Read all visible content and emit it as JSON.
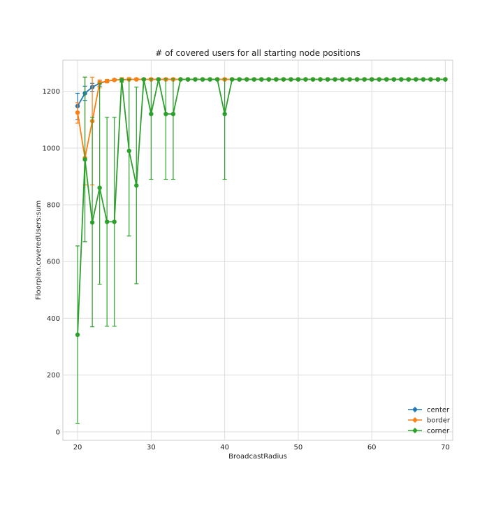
{
  "chart_data": {
    "type": "line",
    "title": "# of covered users for all starting node positions",
    "xlabel": "BroadcastRadius",
    "ylabel": "Floorplan.coveredUsers:sum",
    "xlim": [
      18,
      71
    ],
    "ylim": [
      -30,
      1310
    ],
    "xticks": [
      20,
      30,
      40,
      50,
      60,
      70
    ],
    "yticks": [
      0,
      200,
      400,
      600,
      800,
      1000,
      1200
    ],
    "grid": true,
    "legend_position": "bottom-right",
    "x": [
      20,
      21,
      22,
      23,
      24,
      25,
      26,
      27,
      28,
      29,
      30,
      31,
      32,
      33,
      34,
      35,
      36,
      37,
      38,
      39,
      40,
      41,
      42,
      43,
      44,
      45,
      46,
      47,
      48,
      49,
      50,
      51,
      52,
      53,
      54,
      55,
      56,
      57,
      58,
      59,
      60,
      61,
      62,
      63,
      64,
      65,
      66,
      67,
      68,
      69,
      70
    ],
    "series": [
      {
        "name": "center",
        "color": "#1f77b4",
        "values": [
          1148,
          1193,
          1215,
          1228,
          1236,
          1240,
          1241,
          1242,
          1242,
          1242,
          1242,
          1242,
          1242,
          1242,
          1242,
          1242,
          1242,
          1242,
          1242,
          1242,
          1242,
          1242,
          1242,
          1242,
          1242,
          1242,
          1242,
          1242,
          1242,
          1242,
          1242,
          1242,
          1242,
          1242,
          1242,
          1242,
          1242,
          1242,
          1242,
          1242,
          1242,
          1242,
          1242,
          1242,
          1242,
          1242,
          1242,
          1242,
          1242,
          1242,
          1242
        ],
        "err_low": [
          1100,
          1168,
          1200,
          1218,
          1230,
          1237,
          1239,
          1240,
          1240,
          1240,
          1240,
          1240,
          1240,
          1240,
          1240,
          1240,
          1240,
          1240,
          1240,
          1240,
          1240,
          1240,
          1240,
          1240,
          1240,
          1240,
          1240,
          1240,
          1240,
          1240,
          1240,
          1240,
          1240,
          1240,
          1240,
          1240,
          1240,
          1240,
          1240,
          1240,
          1240,
          1240,
          1240,
          1240,
          1240,
          1240,
          1240,
          1240,
          1240,
          1240,
          1240
        ],
        "err_high": [
          1193,
          1218,
          1228,
          1236,
          1240,
          1242,
          1243,
          1244,
          1244,
          1244,
          1244,
          1244,
          1244,
          1244,
          1244,
          1244,
          1244,
          1244,
          1244,
          1244,
          1244,
          1244,
          1244,
          1244,
          1244,
          1244,
          1244,
          1244,
          1244,
          1244,
          1244,
          1244,
          1244,
          1244,
          1244,
          1244,
          1244,
          1244,
          1244,
          1244,
          1244,
          1244,
          1244,
          1244,
          1244,
          1244,
          1244,
          1244,
          1244,
          1244,
          1244
        ]
      },
      {
        "name": "border",
        "color": "#ff7f0e",
        "values": [
          1125,
          965,
          1095,
          1230,
          1236,
          1240,
          1241,
          1242,
          1242,
          1242,
          1242,
          1242,
          1242,
          1242,
          1242,
          1242,
          1242,
          1242,
          1242,
          1242,
          1242,
          1242,
          1242,
          1242,
          1242,
          1242,
          1242,
          1242,
          1242,
          1242,
          1242,
          1242,
          1242,
          1242,
          1242,
          1242,
          1242,
          1242,
          1242,
          1242,
          1242,
          1242,
          1242,
          1242,
          1242,
          1242,
          1242,
          1242,
          1242,
          1242,
          1242
        ],
        "err_low": [
          1088,
          870,
          870,
          1212,
          1230,
          1237,
          1234,
          1240,
          1240,
          1240,
          1240,
          1240,
          1240,
          1240,
          1240,
          1240,
          1240,
          1240,
          1240,
          1240,
          1240,
          1240,
          1240,
          1240,
          1240,
          1240,
          1240,
          1240,
          1240,
          1240,
          1240,
          1240,
          1240,
          1240,
          1240,
          1240,
          1240,
          1240,
          1240,
          1240,
          1240,
          1240,
          1240,
          1240,
          1240,
          1240,
          1240,
          1240,
          1240,
          1240,
          1240
        ],
        "err_high": [
          1160,
          1250,
          1250,
          1240,
          1242,
          1244,
          1248,
          1248,
          1246,
          1246,
          1246,
          1246,
          1246,
          1246,
          1246,
          1246,
          1246,
          1246,
          1246,
          1246,
          1246,
          1246,
          1246,
          1246,
          1246,
          1246,
          1246,
          1246,
          1246,
          1246,
          1246,
          1246,
          1246,
          1246,
          1246,
          1246,
          1246,
          1246,
          1246,
          1246,
          1246,
          1246,
          1246,
          1246,
          1246,
          1246,
          1246,
          1246,
          1246,
          1246,
          1246
        ]
      },
      {
        "name": "corner",
        "color": "#2ca02c",
        "values": [
          342,
          960,
          738,
          860,
          740,
          740,
          1240,
          990,
          868,
          1242,
          1120,
          1242,
          1120,
          1120,
          1242,
          1242,
          1242,
          1242,
          1242,
          1242,
          1120,
          1242,
          1242,
          1242,
          1242,
          1242,
          1242,
          1242,
          1242,
          1242,
          1242,
          1242,
          1242,
          1242,
          1242,
          1242,
          1242,
          1242,
          1242,
          1242,
          1242,
          1242,
          1242,
          1242,
          1242,
          1242,
          1242,
          1242,
          1242,
          1242,
          1242
        ],
        "err_low": [
          30,
          670,
          370,
          520,
          372,
          372,
          1232,
          690,
          522,
          1240,
          890,
          1240,
          890,
          890,
          1240,
          1240,
          1240,
          1240,
          1240,
          1240,
          890,
          1240,
          1240,
          1240,
          1240,
          1240,
          1240,
          1240,
          1240,
          1240,
          1240,
          1240,
          1240,
          1240,
          1240,
          1240,
          1240,
          1240,
          1240,
          1240,
          1240,
          1240,
          1240,
          1240,
          1240,
          1240,
          1240,
          1240,
          1240,
          1240,
          1240
        ],
        "err_high": [
          655,
          1250,
          1108,
          1228,
          1108,
          1108,
          1244,
          1242,
          1215,
          1244,
          1244,
          1244,
          1244,
          1244,
          1244,
          1244,
          1244,
          1244,
          1244,
          1244,
          1244,
          1244,
          1244,
          1244,
          1244,
          1244,
          1244,
          1244,
          1244,
          1244,
          1244,
          1244,
          1244,
          1244,
          1244,
          1244,
          1244,
          1244,
          1244,
          1244,
          1244,
          1244,
          1244,
          1244,
          1244,
          1244,
          1244,
          1244,
          1244,
          1244,
          1244
        ]
      }
    ]
  }
}
